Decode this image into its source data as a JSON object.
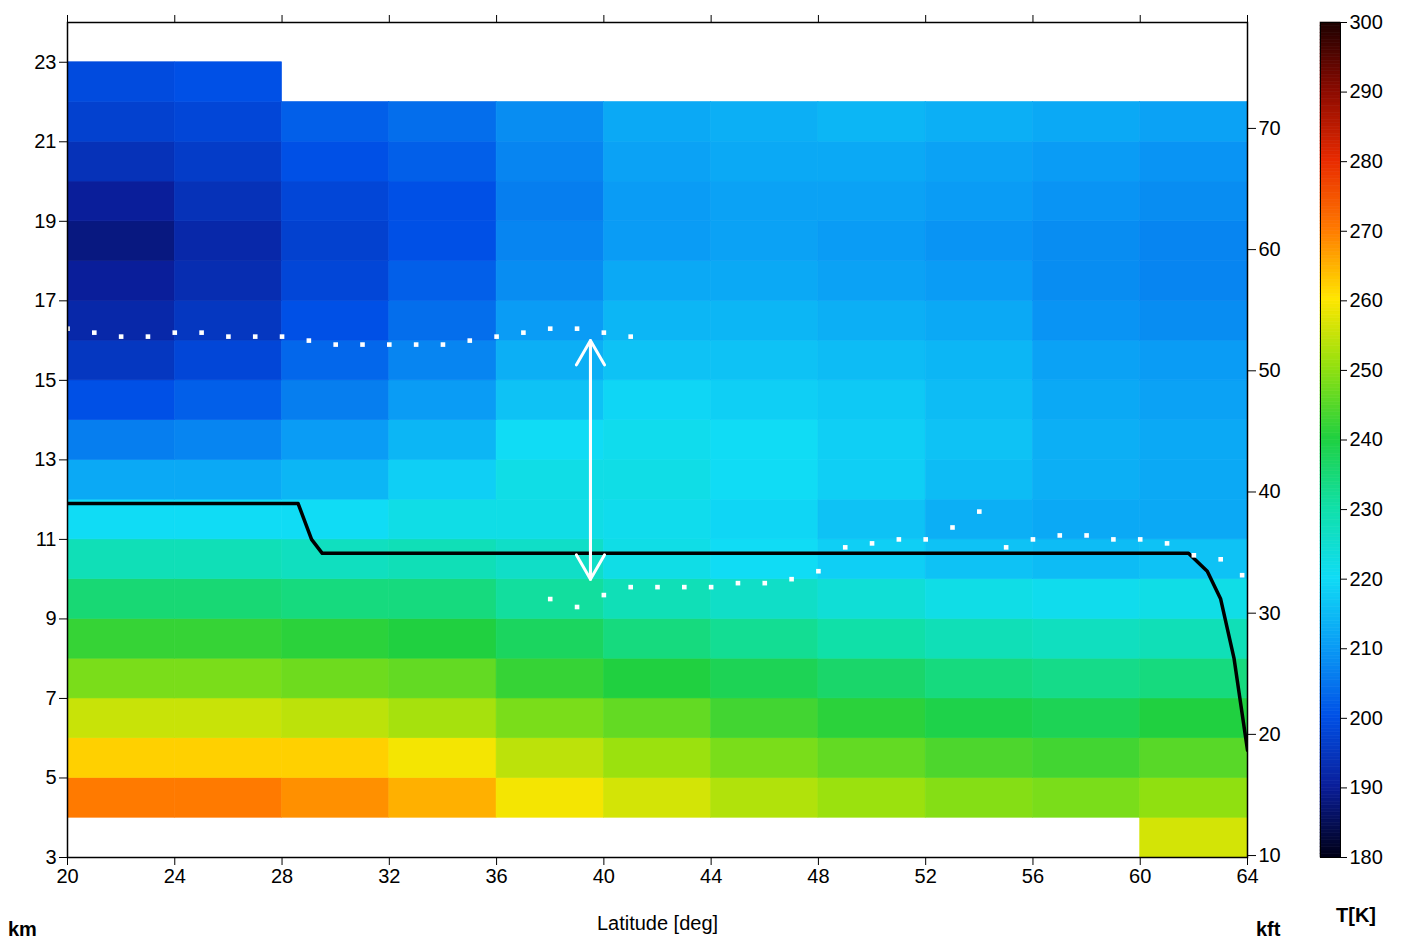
{
  "chart_data": {
    "type": "heatmap",
    "x_label": "Latitude [deg]",
    "y_label": "km",
    "y2_label": "kft",
    "xlim": [
      20,
      64
    ],
    "xticks": [
      20,
      24,
      28,
      32,
      36,
      40,
      44,
      48,
      52,
      56,
      60,
      64
    ],
    "ylim": [
      3,
      24
    ],
    "yticks": [
      3,
      5,
      7,
      9,
      11,
      13,
      15,
      17,
      19,
      21,
      23
    ],
    "y2lim": [
      9.84,
      78.74
    ],
    "y2ticks": [
      10,
      20,
      30,
      40,
      50,
      60,
      70
    ],
    "x_bins": [
      20,
      24,
      28,
      32,
      36,
      40,
      44,
      48,
      52,
      56,
      60,
      64
    ],
    "y_bins": [
      3,
      4,
      5,
      6,
      7,
      8,
      9,
      10,
      11,
      12,
      13,
      14,
      15,
      16,
      17,
      18,
      19,
      20,
      21,
      22,
      23
    ],
    "values": [
      [
        null,
        null,
        null,
        null,
        null,
        null,
        null,
        null,
        null,
        null,
        256
      ],
      [
        270,
        270,
        268,
        265,
        259,
        256,
        253,
        251,
        249,
        248,
        250
      ],
      [
        262,
        262,
        262,
        259,
        254,
        251,
        248,
        246,
        244,
        243,
        245
      ],
      [
        255,
        255,
        254,
        252,
        248,
        246,
        243,
        241,
        239,
        238,
        240
      ],
      [
        248,
        248,
        247,
        246,
        242,
        240,
        238,
        236,
        234,
        233,
        234
      ],
      [
        242,
        242,
        241,
        240,
        237,
        234,
        232,
        230,
        228,
        227,
        228
      ],
      [
        235,
        235,
        234,
        234,
        231,
        228,
        226,
        224,
        222,
        221,
        222
      ],
      [
        228,
        228,
        227,
        228,
        226,
        222,
        220,
        218,
        216,
        215,
        216
      ],
      [
        220,
        220,
        220,
        222,
        222,
        221,
        219,
        216,
        213,
        212,
        212
      ],
      [
        212,
        212,
        214,
        218,
        222,
        222,
        220,
        218,
        215,
        213,
        212
      ],
      [
        206,
        207,
        210,
        214,
        220,
        221,
        220,
        218,
        216,
        213,
        212
      ],
      [
        200,
        202,
        206,
        210,
        216,
        219,
        218,
        217,
        215,
        212,
        211
      ],
      [
        195,
        198,
        203,
        207,
        213,
        216,
        216,
        215,
        214,
        211,
        210
      ],
      [
        192,
        195,
        200,
        204,
        210,
        214,
        214,
        213,
        212,
        209,
        208
      ],
      [
        190,
        193,
        198,
        202,
        208,
        212,
        212,
        211,
        210,
        208,
        207
      ],
      [
        188,
        192,
        197,
        200,
        207,
        210,
        211,
        210,
        209,
        208,
        207
      ],
      [
        190,
        194,
        198,
        200,
        206,
        210,
        211,
        211,
        210,
        209,
        208
      ],
      [
        194,
        196,
        200,
        202,
        207,
        211,
        212,
        212,
        211,
        210,
        209
      ],
      [
        197,
        198,
        202,
        204,
        208,
        212,
        213,
        214,
        213,
        212,
        211
      ],
      [
        199,
        200,
        null,
        null,
        null,
        null,
        null,
        null,
        null,
        null,
        null
      ]
    ],
    "colorbar": {
      "label": "T[K]",
      "lim": [
        180,
        300
      ],
      "ticks": [
        180,
        190,
        200,
        210,
        220,
        230,
        240,
        250,
        260,
        270,
        280,
        290,
        300
      ]
    },
    "series": [
      {
        "type": "line",
        "color": "#000000",
        "line_style": "solid",
        "x": [
          20,
          28.6,
          29.1,
          29.5,
          61.8,
          62.5,
          63,
          63.5,
          64
        ],
        "values": [
          11.9,
          11.9,
          11.0,
          10.65,
          10.65,
          10.2,
          9.5,
          8.0,
          5.7
        ]
      },
      {
        "type": "scatter",
        "color": "#ffffff",
        "marker": "square",
        "x": [
          20,
          21,
          22,
          23,
          24,
          25,
          26,
          27,
          28,
          29,
          30,
          31,
          32,
          33,
          34,
          35,
          36,
          37,
          38,
          39,
          40,
          41
        ],
        "values": [
          16.3,
          16.2,
          16.1,
          16.1,
          16.2,
          16.2,
          16.1,
          16.1,
          16.1,
          16.0,
          15.9,
          15.9,
          15.9,
          15.9,
          15.9,
          16.0,
          16.1,
          16.2,
          16.3,
          16.3,
          16.2,
          16.1
        ]
      },
      {
        "type": "scatter",
        "color": "#ffffff",
        "marker": "square",
        "x": [
          38,
          39,
          40,
          41,
          42,
          43,
          44,
          45,
          46,
          47,
          48,
          49,
          50,
          51,
          52,
          53,
          54,
          55,
          56,
          57,
          58,
          59,
          60,
          61,
          62,
          63,
          63.8
        ],
        "values": [
          9.5,
          9.3,
          9.6,
          9.8,
          9.8,
          9.8,
          9.8,
          9.9,
          9.9,
          10.0,
          10.2,
          10.8,
          10.9,
          11.0,
          11.0,
          11.3,
          11.7,
          10.8,
          11.0,
          11.1,
          11.1,
          11.0,
          11.0,
          10.9,
          10.6,
          10.5,
          10.1
        ]
      }
    ],
    "arrow": {
      "x": 39.5,
      "y1": 10.0,
      "y2": 16.0,
      "color": "#ffffff"
    }
  }
}
